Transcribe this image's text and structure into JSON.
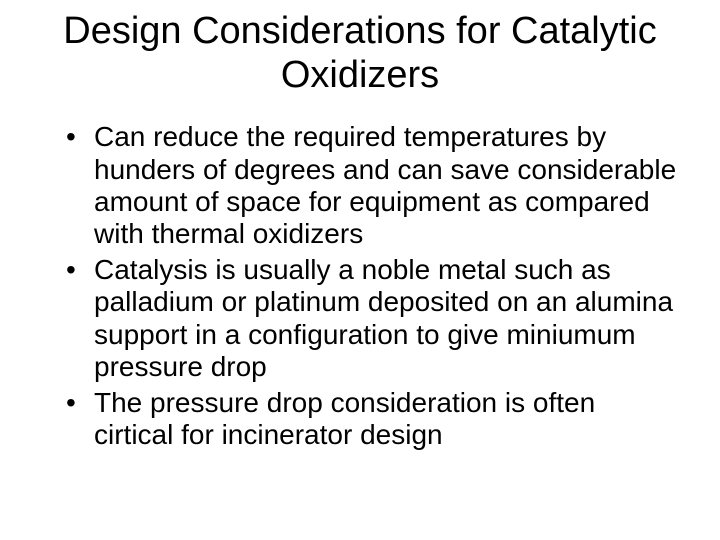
{
  "slide": {
    "title": "Design Considerations for Catalytic Oxidizers",
    "bullets": [
      "Can reduce the required temperatures by hunders of degrees and can save considerable amount of space for equipment as compared with thermal oxidizers",
      "Catalysis is usually a noble metal such as palladium or platinum deposited on an alumina support in a configuration to give miniumum pressure drop",
      "The pressure drop consideration is often cirtical  for incinerator design"
    ],
    "colors": {
      "background": "#ffffff",
      "text": "#000000"
    },
    "typography": {
      "title_fontsize": 38,
      "body_fontsize": 28,
      "font_family": "Arial"
    }
  }
}
